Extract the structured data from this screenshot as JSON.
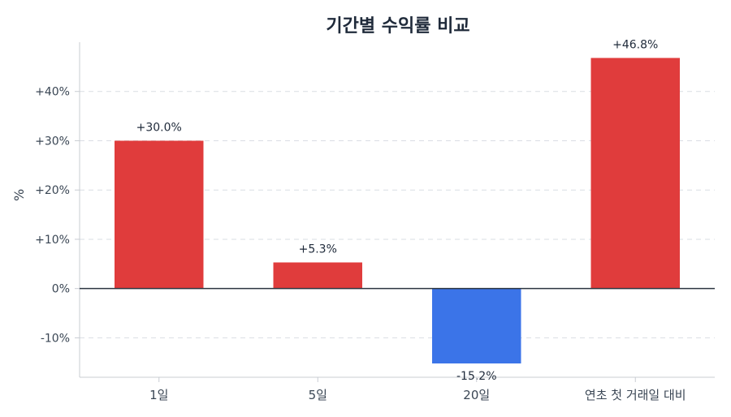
{
  "chart_data": {
    "type": "bar",
    "title": "기간별 수익률 비교",
    "ylabel": "%",
    "categories": [
      "1일",
      "5일",
      "20일",
      "연초 첫 거래일 대비"
    ],
    "values": [
      30.0,
      5.3,
      -15.2,
      46.8
    ],
    "value_labels": [
      "+30.0%",
      "+5.3%",
      "-15.2%",
      "+46.8%"
    ],
    "yticks": [
      -10,
      0,
      10,
      20,
      30,
      40
    ],
    "ytick_labels": [
      "-10%",
      "0%",
      "+10%",
      "+20%",
      "+30%",
      "+40%"
    ],
    "ylim": [
      -18,
      50
    ],
    "grid": "horizontal dashed",
    "colors": {
      "positive": "#e03c3c",
      "negative": "#3b74e8",
      "zero_line": "#2c3540",
      "grid": "#d9dde3",
      "axis": "#c8ccd2"
    }
  }
}
